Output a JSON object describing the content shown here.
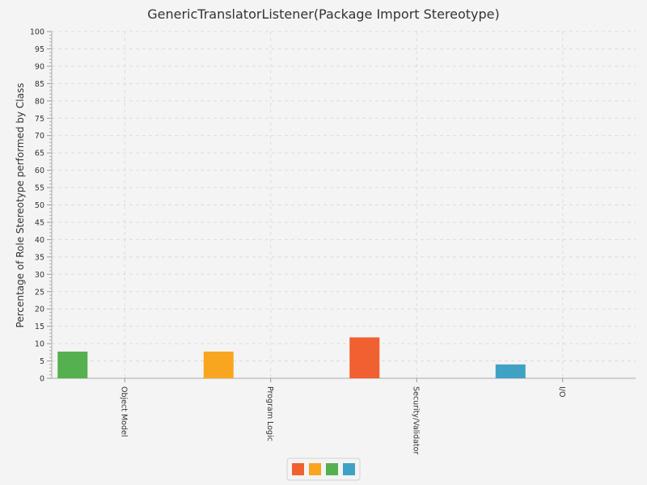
{
  "chart_data": {
    "type": "bar",
    "title": "GenericTranslatorListener(Package Import Stereotype)",
    "xlabel": "",
    "ylabel": "Percentage of Role Stereotype performed by Class",
    "ylim": [
      0,
      100
    ],
    "ytick_step": 5,
    "grid": true,
    "legend_position": "bottom",
    "categories": [
      "Object Model",
      "Program Logic",
      "Security/Validator",
      "I/O"
    ],
    "series": [
      {
        "color": "#f06030",
        "values": [
          0,
          0,
          11.8,
          0
        ]
      },
      {
        "color": "#f8a520",
        "values": [
          0,
          7.7,
          0,
          0
        ]
      },
      {
        "color": "#55b050",
        "values": [
          7.7,
          0,
          0,
          0
        ]
      },
      {
        "color": "#3fa2c5",
        "values": [
          0,
          0,
          0,
          4.0
        ]
      }
    ]
  }
}
